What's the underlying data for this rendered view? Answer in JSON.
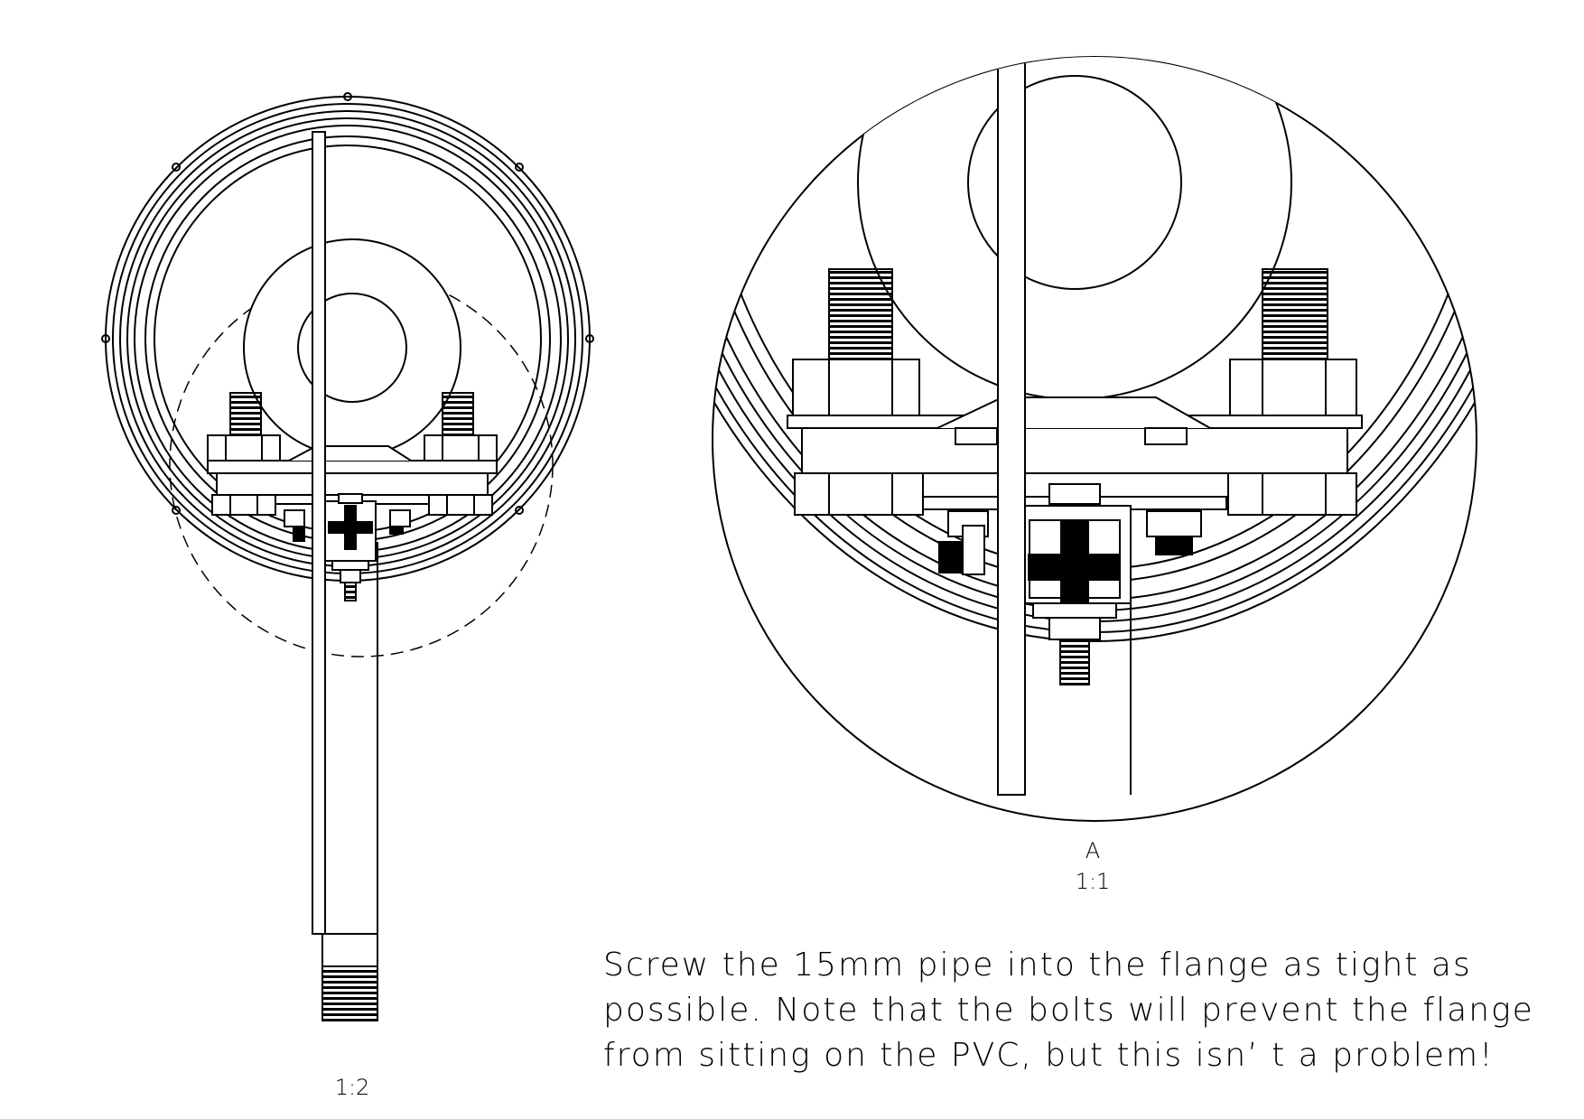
{
  "views": {
    "main": {
      "scale": "1:2"
    },
    "detail": {
      "label": "A",
      "scale": "1:1"
    }
  },
  "note": "Screw the 15mm pipe into the flange as tight as possible. Note that the bolts will prevent the flange from sitting on the PVC, but this isn’ t a problem!",
  "colors": {
    "line": "#000000",
    "background": "#ffffff"
  }
}
